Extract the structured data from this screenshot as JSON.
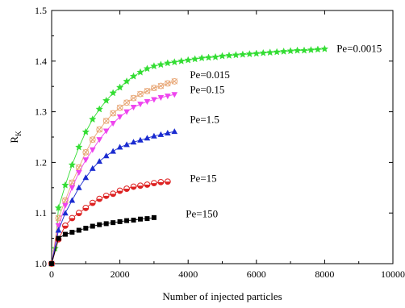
{
  "chart_data": {
    "type": "line",
    "title": "",
    "xlabel": "Number of injected particles",
    "ylabel": "R",
    "ylabel_subscript": "K",
    "xlim": [
      0,
      10000
    ],
    "ylim": [
      1.0,
      1.5
    ],
    "xticks": [
      0,
      2000,
      4000,
      6000,
      8000,
      10000
    ],
    "yticks": [
      1.0,
      1.1,
      1.2,
      1.3,
      1.4,
      1.5
    ],
    "xtick_labels": [
      "0",
      "2000",
      "4000",
      "6000",
      "8000",
      "10000"
    ],
    "ytick_labels": [
      "1.0",
      "1.1",
      "1.2",
      "1.3",
      "1.4",
      "1.5"
    ],
    "grid": false,
    "legend": "none (series labelled inline)",
    "series": [
      {
        "name": "Pe=0.0015",
        "color": "#33dd33",
        "marker": "star",
        "label_at": [
          8350,
          1.424
        ],
        "points": [
          [
            0,
            1.0
          ],
          [
            100,
            1.03
          ],
          [
            200,
            1.11
          ],
          [
            400,
            1.155
          ],
          [
            600,
            1.195
          ],
          [
            800,
            1.23
          ],
          [
            1000,
            1.26
          ],
          [
            1200,
            1.285
          ],
          [
            1400,
            1.305
          ],
          [
            1600,
            1.322
          ],
          [
            1800,
            1.337
          ],
          [
            2000,
            1.348
          ],
          [
            2200,
            1.36
          ],
          [
            2400,
            1.37
          ],
          [
            2600,
            1.378
          ],
          [
            2800,
            1.385
          ],
          [
            3000,
            1.39
          ],
          [
            3200,
            1.393
          ],
          [
            3400,
            1.396
          ],
          [
            3600,
            1.398
          ],
          [
            3800,
            1.4
          ],
          [
            4000,
            1.402
          ],
          [
            4200,
            1.404
          ],
          [
            4400,
            1.406
          ],
          [
            4600,
            1.407
          ],
          [
            4800,
            1.408
          ],
          [
            5000,
            1.41
          ],
          [
            5200,
            1.411
          ],
          [
            5400,
            1.412
          ],
          [
            5600,
            1.413
          ],
          [
            5800,
            1.414
          ],
          [
            6000,
            1.415
          ],
          [
            6200,
            1.416
          ],
          [
            6400,
            1.417
          ],
          [
            6600,
            1.418
          ],
          [
            6800,
            1.419
          ],
          [
            7000,
            1.42
          ],
          [
            7200,
            1.421
          ],
          [
            7400,
            1.421
          ],
          [
            7600,
            1.422
          ],
          [
            7800,
            1.423
          ],
          [
            8000,
            1.424
          ]
        ]
      },
      {
        "name": "Pe=0.015",
        "color": "#e8a878",
        "marker": "circle-x",
        "label_at": [
          4050,
          1.373
        ],
        "points": [
          [
            0,
            1.0
          ],
          [
            200,
            1.09
          ],
          [
            400,
            1.125
          ],
          [
            600,
            1.16
          ],
          [
            800,
            1.19
          ],
          [
            1000,
            1.22
          ],
          [
            1200,
            1.245
          ],
          [
            1400,
            1.265
          ],
          [
            1600,
            1.282
          ],
          [
            1800,
            1.297
          ],
          [
            2000,
            1.308
          ],
          [
            2200,
            1.318
          ],
          [
            2400,
            1.327
          ],
          [
            2600,
            1.335
          ],
          [
            2800,
            1.341
          ],
          [
            3000,
            1.347
          ],
          [
            3200,
            1.351
          ],
          [
            3400,
            1.356
          ],
          [
            3600,
            1.36
          ]
        ]
      },
      {
        "name": "Pe=0.15",
        "color": "#ee44ee",
        "marker": "triangle-down",
        "label_at": [
          4050,
          1.343
        ],
        "points": [
          [
            0,
            1.0
          ],
          [
            200,
            1.075
          ],
          [
            400,
            1.115
          ],
          [
            600,
            1.15
          ],
          [
            800,
            1.18
          ],
          [
            1000,
            1.205
          ],
          [
            1200,
            1.225
          ],
          [
            1400,
            1.245
          ],
          [
            1600,
            1.262
          ],
          [
            1800,
            1.277
          ],
          [
            2000,
            1.29
          ],
          [
            2200,
            1.3
          ],
          [
            2400,
            1.309
          ],
          [
            2600,
            1.315
          ],
          [
            2800,
            1.32
          ],
          [
            3000,
            1.324
          ],
          [
            3200,
            1.328
          ],
          [
            3400,
            1.331
          ],
          [
            3600,
            1.334
          ]
        ]
      },
      {
        "name": "Pe=1.5",
        "color": "#1a2bd0",
        "marker": "triangle-up",
        "label_at": [
          4050,
          1.284
        ],
        "points": [
          [
            0,
            1.0
          ],
          [
            200,
            1.066
          ],
          [
            400,
            1.1
          ],
          [
            600,
            1.125
          ],
          [
            800,
            1.15
          ],
          [
            1000,
            1.17
          ],
          [
            1200,
            1.188
          ],
          [
            1400,
            1.202
          ],
          [
            1600,
            1.213
          ],
          [
            1800,
            1.222
          ],
          [
            2000,
            1.23
          ],
          [
            2200,
            1.235
          ],
          [
            2400,
            1.24
          ],
          [
            2600,
            1.244
          ],
          [
            2800,
            1.248
          ],
          [
            3000,
            1.252
          ],
          [
            3200,
            1.255
          ],
          [
            3400,
            1.258
          ],
          [
            3600,
            1.261
          ]
        ]
      },
      {
        "name": "Pe=15",
        "color": "#dd2222",
        "marker": "circle-half",
        "label_at": [
          4050,
          1.168
        ],
        "points": [
          [
            0,
            1.0
          ],
          [
            200,
            1.048
          ],
          [
            400,
            1.075
          ],
          [
            600,
            1.09
          ],
          [
            800,
            1.1
          ],
          [
            1000,
            1.11
          ],
          [
            1200,
            1.12
          ],
          [
            1400,
            1.128
          ],
          [
            1600,
            1.134
          ],
          [
            1800,
            1.138
          ],
          [
            2000,
            1.144
          ],
          [
            2200,
            1.148
          ],
          [
            2400,
            1.152
          ],
          [
            2600,
            1.154
          ],
          [
            2800,
            1.156
          ],
          [
            3000,
            1.159
          ],
          [
            3200,
            1.161
          ],
          [
            3400,
            1.162
          ]
        ]
      },
      {
        "name": "Pe=150",
        "color": "#000000",
        "marker": "square",
        "label_at": [
          3930,
          1.098
        ],
        "points": [
          [
            0,
            1.0
          ],
          [
            200,
            1.05
          ],
          [
            400,
            1.058
          ],
          [
            600,
            1.062
          ],
          [
            800,
            1.066
          ],
          [
            1000,
            1.07
          ],
          [
            1200,
            1.074
          ],
          [
            1400,
            1.077
          ],
          [
            1600,
            1.079
          ],
          [
            1800,
            1.081
          ],
          [
            2000,
            1.083
          ],
          [
            2200,
            1.085
          ],
          [
            2400,
            1.086
          ],
          [
            2600,
            1.088
          ],
          [
            2800,
            1.089
          ],
          [
            3000,
            1.091
          ]
        ]
      }
    ]
  }
}
